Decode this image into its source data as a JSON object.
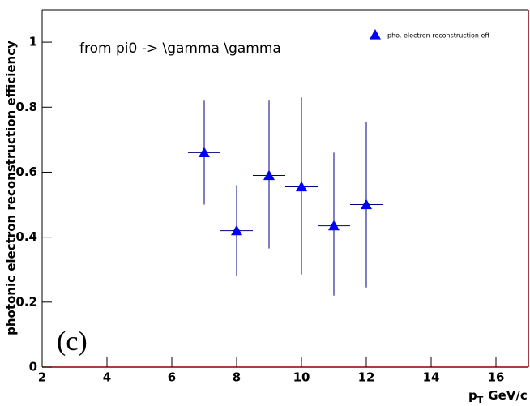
{
  "chart_data": {
    "type": "errorbar",
    "y_label": "photonic electron reconstruction efficiency",
    "x_label": "p",
    "x_label_sub": "T",
    "x_label_unit": "GeV/c",
    "annotations": [
      "from pi0 -> \\gamma \\gamma",
      "(c)"
    ],
    "series": [
      {
        "name": "pho. electron reconstruction eff",
        "color": "#0000ff",
        "bar_color": "#000080",
        "x": [
          7,
          8,
          9,
          10,
          11,
          12
        ],
        "values": [
          0.66,
          0.42,
          0.59,
          0.555,
          0.435,
          0.5
        ],
        "low": [
          0.5,
          0.28,
          0.365,
          0.285,
          0.22,
          0.245
        ],
        "high": [
          0.82,
          0.56,
          0.82,
          0.83,
          0.66,
          0.755
        ],
        "xerr": [
          0.5,
          0.5,
          0.5,
          0.5,
          0.5,
          0.5
        ]
      }
    ],
    "xlim": [
      2,
      17
    ],
    "ylim": [
      0,
      1.1
    ],
    "xticks": [
      2,
      4,
      6,
      8,
      10,
      12,
      14,
      16
    ],
    "yticks": [
      0,
      0.2,
      0.4,
      0.6,
      0.8,
      1
    ]
  }
}
